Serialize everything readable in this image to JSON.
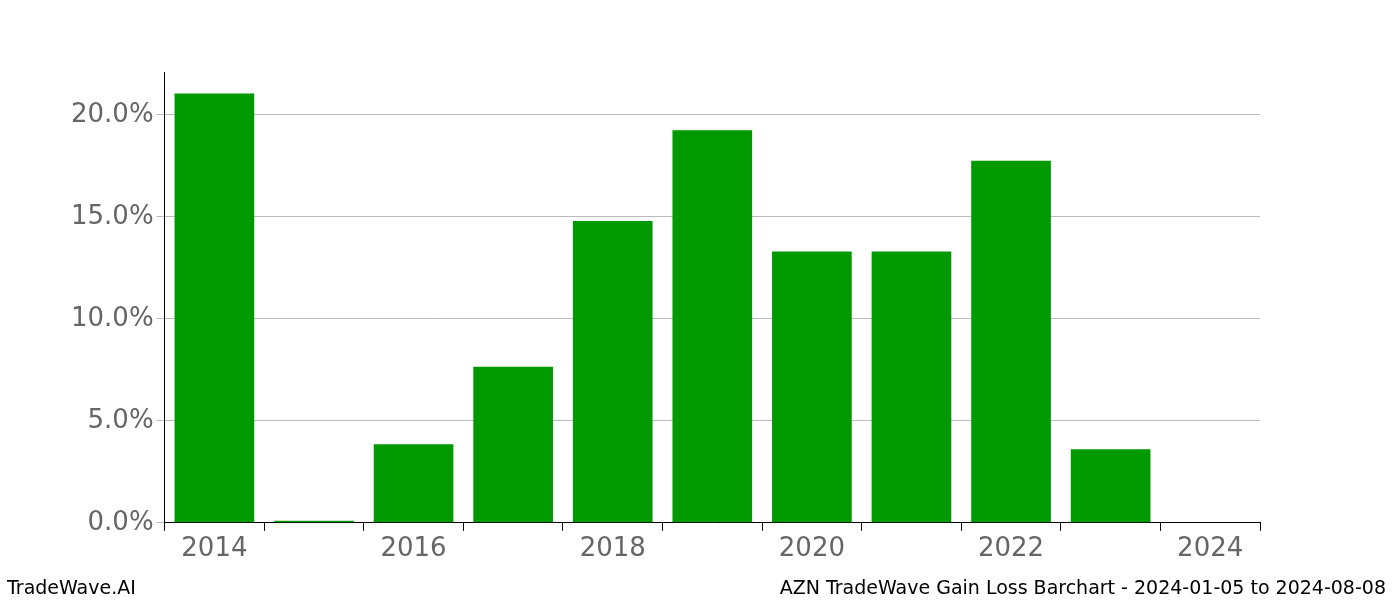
{
  "chart_data": {
    "type": "bar",
    "title": "AZN TradeWave Gain Loss Barchart - 2024-01-05 to 2024-08-08",
    "credit": "TradeWave.AI",
    "categories": [
      "2014",
      null,
      "2016",
      null,
      "2018",
      null,
      "2020",
      null,
      "2022",
      null,
      "2024"
    ],
    "values": [
      21.05,
      0.1,
      3.85,
      7.65,
      14.8,
      19.25,
      13.3,
      13.3,
      17.75,
      3.6,
      0
    ],
    "color": "#009900",
    "ylim": [
      0,
      22.1
    ],
    "yticks": [
      {
        "value": 0,
        "label": "0.0%"
      },
      {
        "value": 5,
        "label": "5.0%"
      },
      {
        "value": 10,
        "label": "10.0%"
      },
      {
        "value": 15,
        "label": "15.0%"
      },
      {
        "value": 20,
        "label": "20.0%"
      }
    ],
    "grid": true
  }
}
